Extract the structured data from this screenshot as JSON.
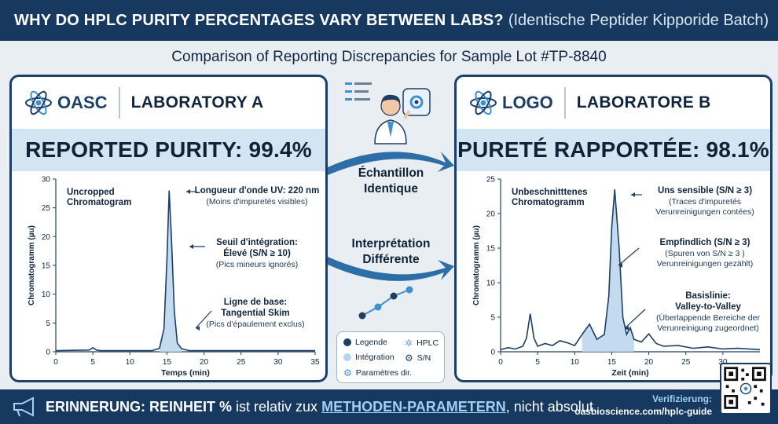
{
  "header": {
    "title": "WHY DO HPLC PURITY PERCENTAGES VARY BETWEEN LABS?",
    "title_paren": "(Identische Peptider Kipporide Batch)"
  },
  "subtitle": "Comparison of Reporting Discrepancies for Sample Lot #TP-8840",
  "lab_a": {
    "logo": "OASC",
    "name": "LABORATORY A",
    "purity_label": "REPORTED PURITY: 99.4%",
    "chart_label": [
      "Uncropped",
      "Chromatogram"
    ],
    "annotations": [
      {
        "head": [
          "Longueur d'onde UV: 220 nm"
        ],
        "note": [
          "(Moins d'impuretés visibles)"
        ]
      },
      {
        "head": [
          "Seuil d'intégration:",
          "Élevé (S/N ≥ 10)"
        ],
        "note": [
          "(Pics mineurs ignorés)"
        ]
      },
      {
        "head": [
          "Ligne de base:",
          "Tangential Skim"
        ],
        "note": [
          "(Pics d'épaulement exclus)"
        ]
      }
    ]
  },
  "lab_b": {
    "logo": "LOGO",
    "name": "LABORATORE B",
    "purity_label": "PURETÉ RAPPORTÉE: 98.1%",
    "chart_label": [
      "Unbeschnitttenes",
      "Chromatogramm"
    ],
    "annotations": [
      {
        "head": [
          "Uns sensible (S/N ≥ 3)"
        ],
        "note": [
          "(Traces d'impuretés",
          "Verunreinigungen contées)"
        ]
      },
      {
        "head": [
          "Empfindlich (S/N ≥ 3)"
        ],
        "note": [
          "(Spuren von S/N ≥ 3 )",
          "Verunreinigungen gezählt)"
        ]
      },
      {
        "head": [
          "Basislinie:",
          "Valley-to-Valley"
        ],
        "note": [
          "(Überlappende Bereiche der",
          "Verunreinigung zugeordnet)"
        ]
      }
    ]
  },
  "center": {
    "arrow1": [
      "Échantillon",
      "Identique"
    ],
    "arrow2": [
      "Interprétation",
      "Différente"
    ]
  },
  "legend": {
    "items": [
      "Legende",
      "HPLC",
      "Intégration",
      "S/N",
      "Paramètres dir."
    ]
  },
  "footer": {
    "reminder_bold": "ERINNERUNG: REINHEIT %",
    "reminder_mid": "ist relativ zux",
    "reminder_hl": "METHODEN-PARAMETERN",
    "reminder_end": ", nicht absolut.",
    "verify_label": "Verifizierung:",
    "verify_url": "oasbioscience.com/hplc-guide"
  },
  "colors": {
    "navy": "#17395f",
    "accent_light": "#d3e4f3",
    "peak_fill": "#b8d4ec",
    "line": "#1d3f66"
  },
  "chart_data": [
    {
      "type": "line",
      "title": "",
      "xlabel": "Temps (min)",
      "ylabel": "Chromatogramm (µu)",
      "xlim": [
        0,
        35
      ],
      "ylim": [
        0,
        30
      ],
      "xticks": [
        0,
        5,
        10,
        15,
        20,
        25,
        30,
        35
      ],
      "yticks": [
        0,
        5,
        10,
        15,
        20,
        25,
        30
      ],
      "series": [
        {
          "x": [
            0,
            4.5,
            5,
            5.5,
            6,
            13,
            14,
            14.6,
            15,
            15.3,
            15.6,
            16,
            16.4,
            17,
            18,
            35
          ],
          "y": [
            0.2,
            0.3,
            0.7,
            0.3,
            0.2,
            0.2,
            0.6,
            4,
            16,
            28,
            20,
            7,
            1.5,
            0.5,
            0.2,
            0.2
          ]
        }
      ]
    },
    {
      "type": "line",
      "title": "",
      "xlabel": "Zeit (min)",
      "ylabel": "Chromatogramm (µu)",
      "xlim": [
        0,
        35
      ],
      "ylim": [
        0,
        25
      ],
      "xticks": [
        0,
        5,
        10,
        15,
        20,
        25,
        30
      ],
      "yticks": [
        0,
        5,
        10,
        15,
        20,
        25
      ],
      "series": [
        {
          "x": [
            0,
            1,
            2,
            3,
            3.5,
            4,
            4.5,
            5,
            6,
            7,
            8,
            9,
            10,
            11,
            12,
            13,
            14,
            14.6,
            15,
            15.4,
            16,
            16.5,
            17,
            17.5,
            18,
            19,
            20,
            21,
            22,
            24,
            26,
            28,
            30,
            32,
            35
          ],
          "y": [
            0.3,
            0.6,
            0.4,
            0.8,
            2,
            5.5,
            2,
            0.8,
            1.2,
            0.9,
            1.6,
            1.3,
            0.9,
            2.5,
            4,
            1.8,
            2.5,
            8,
            18,
            23.5,
            15,
            5,
            2.5,
            3.5,
            1.8,
            1.4,
            2.6,
            1.2,
            0.8,
            0.9,
            0.5,
            0.7,
            0.4,
            0.5,
            0.3
          ]
        }
      ]
    }
  ]
}
